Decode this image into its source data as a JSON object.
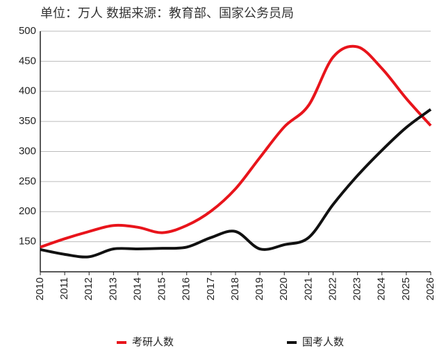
{
  "chart_data": {
    "type": "line",
    "title": "单位：万人  数据来源：教育部、国家公务员局",
    "x": [
      2010,
      2011,
      2012,
      2013,
      2014,
      2015,
      2016,
      2017,
      2018,
      2019,
      2020,
      2021,
      2022,
      2023,
      2024,
      2025,
      2026
    ],
    "xlim": [
      2010,
      2026
    ],
    "xticks": [
      2010,
      2011,
      2012,
      2013,
      2014,
      2015,
      2016,
      2017,
      2018,
      2019,
      2020,
      2021,
      2022,
      2023,
      2024,
      2025,
      2026
    ],
    "ylim": [
      100,
      500
    ],
    "yticks": [
      150,
      200,
      250,
      300,
      350,
      400,
      450,
      500
    ],
    "grid": true,
    "legend": "bottom",
    "series": [
      {
        "name": "考研人数",
        "color": "#e8141b",
        "values": [
          141,
          155,
          167,
          177,
          174,
          165,
          177,
          201,
          238,
          290,
          341,
          377,
          457,
          474,
          438,
          388,
          343
        ]
      },
      {
        "name": "国考人数",
        "color": "#111111",
        "values": [
          137,
          129,
          125,
          138,
          138,
          139,
          141,
          157,
          167,
          138,
          145,
          157,
          212,
          260,
          302,
          340,
          370
        ]
      }
    ]
  }
}
